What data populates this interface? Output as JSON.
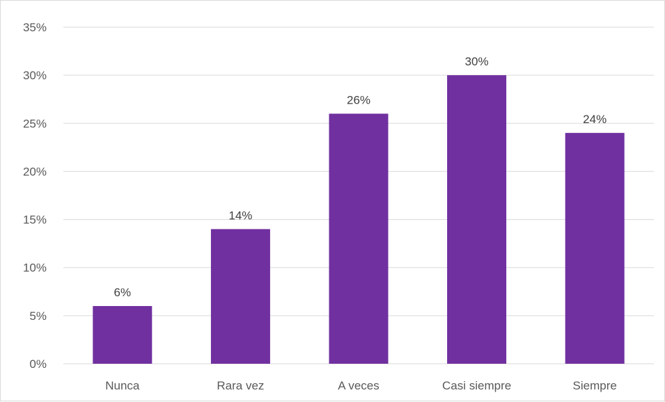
{
  "chart_data": {
    "type": "bar",
    "categories": [
      "Nunca",
      "Rara vez",
      "A veces",
      "Casi siempre",
      "Siempre"
    ],
    "values": [
      6,
      14,
      26,
      30,
      24
    ],
    "data_labels": [
      "6%",
      "14%",
      "26%",
      "30%",
      "24%"
    ],
    "y_ticks": [
      "0%",
      "5%",
      "10%",
      "15%",
      "20%",
      "25%",
      "30%",
      "35%"
    ],
    "ylim": [
      0,
      35
    ],
    "y_step": 5,
    "grid": true,
    "bar_color": "#7030a0"
  }
}
